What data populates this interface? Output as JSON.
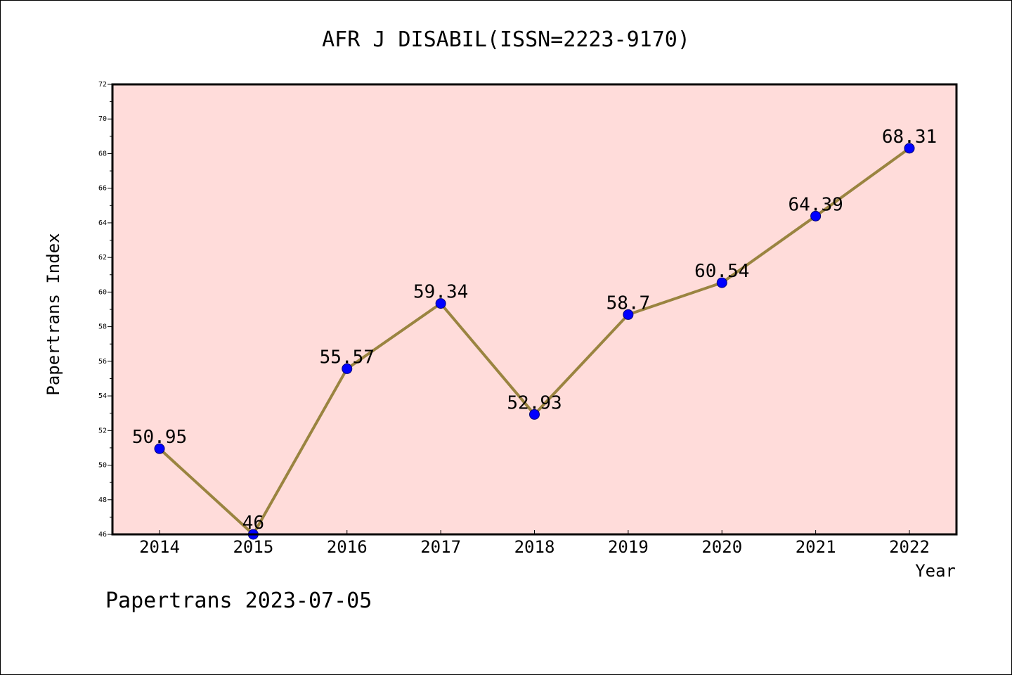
{
  "chart_data": {
    "type": "line",
    "title": "AFR J DISABIL(ISSN=2223-9170)",
    "xlabel": "Year",
    "ylabel": "Papertrans Index",
    "footer": "Papertrans 2023-07-05",
    "x": [
      "2014",
      "2015",
      "2016",
      "2017",
      "2018",
      "2019",
      "2020",
      "2021",
      "2022"
    ],
    "series": [
      {
        "values": [
          50.95,
          46,
          55.57,
          59.34,
          52.93,
          58.7,
          60.54,
          64.39,
          68.31
        ],
        "labels": [
          "50.95",
          "46",
          "55.57",
          "59.34",
          "52.93",
          "58.7",
          "60.54",
          "64.39",
          "68.31"
        ]
      }
    ],
    "ylim": [
      46,
      72
    ],
    "yticks": [
      "46",
      "48",
      "50",
      "52",
      "54",
      "56",
      "58",
      "60",
      "62",
      "64",
      "66",
      "68",
      "70",
      "72"
    ],
    "grid": false,
    "colors": {
      "plot_background": "#FFDCDA",
      "line": "#9A8440",
      "marker": "#0000FF"
    }
  }
}
